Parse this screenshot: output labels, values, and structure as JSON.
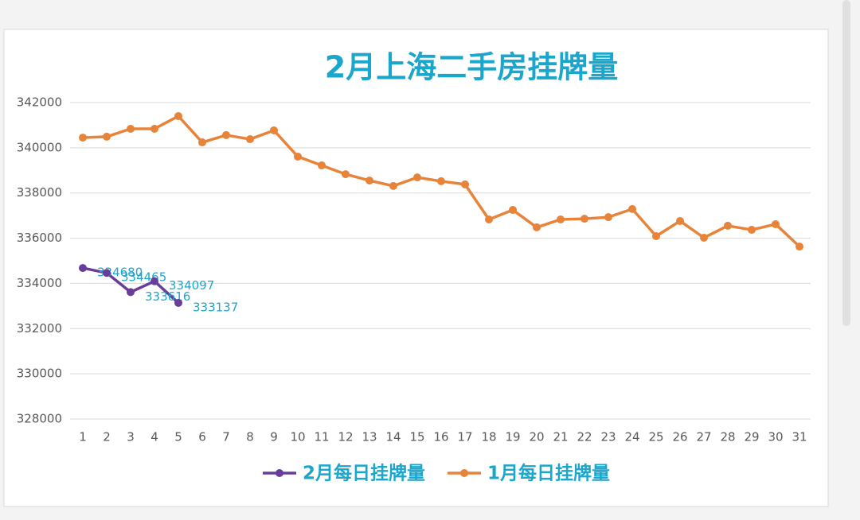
{
  "chart_data": {
    "type": "line",
    "title": "2月上海二手房挂牌量",
    "categories": [
      "1",
      "2",
      "3",
      "4",
      "5",
      "6",
      "7",
      "8",
      "9",
      "10",
      "11",
      "12",
      "13",
      "14",
      "15",
      "16",
      "17",
      "18",
      "19",
      "20",
      "21",
      "22",
      "23",
      "24",
      "25",
      "26",
      "27",
      "28",
      "29",
      "30",
      "31"
    ],
    "series": [
      {
        "name": "2月每日挂牌量",
        "color": "#6a3d9a",
        "data_labels": true,
        "values": [
          334680,
          334465,
          333616,
          334097,
          333137,
          null,
          null,
          null,
          null,
          null,
          null,
          null,
          null,
          null,
          null,
          null,
          null,
          null,
          null,
          null,
          null,
          null,
          null,
          null,
          null,
          null,
          null,
          null,
          null,
          null,
          null
        ]
      },
      {
        "name": "1月每日挂牌量",
        "color": "#e8833a",
        "data_labels": false,
        "values": [
          340450,
          340490,
          340840,
          340840,
          341400,
          340240,
          340560,
          340380,
          340770,
          339610,
          339220,
          338830,
          338550,
          338310,
          338690,
          338520,
          338380,
          336830,
          337250,
          336480,
          336830,
          336860,
          336930,
          337290,
          336090,
          336760,
          336020,
          336550,
          336370,
          336620,
          335630
        ]
      }
    ],
    "ylim": [
      328000,
      342000
    ],
    "yticks": [
      328000,
      330000,
      332000,
      334000,
      336000,
      338000,
      340000,
      342000
    ],
    "grid": true,
    "legend": "bottom"
  }
}
